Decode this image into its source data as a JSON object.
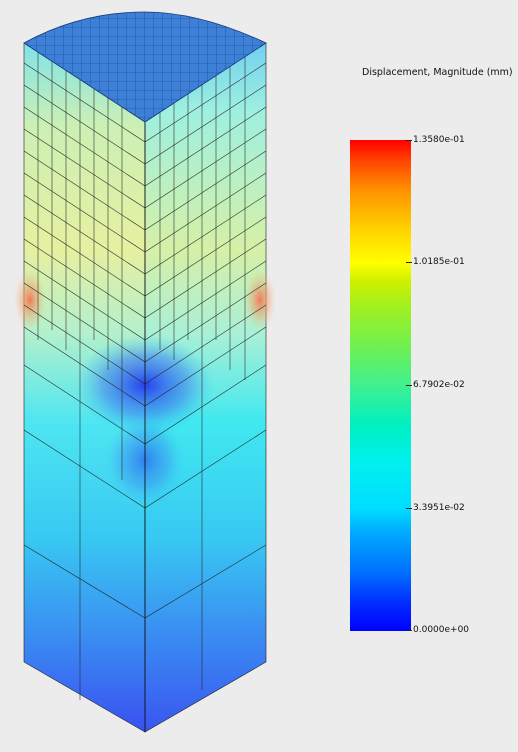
{
  "legend": {
    "title": "Displacement, Magnitude (mm)",
    "ticks": [
      "1.3580e-01",
      "1.0185e-01",
      "6.7902e-02",
      "3.3951e-02",
      "0.0000e+00"
    ],
    "tick_values": [
      0.1358,
      0.10185,
      0.067902,
      0.033951,
      0.0
    ],
    "range": [
      0.0,
      0.1358
    ],
    "colormap": [
      "#0000ff",
      "#00aaff",
      "#00f0f0",
      "#70f050",
      "#ffff00",
      "#ff9000",
      "#ff0000"
    ]
  },
  "model": {
    "description_colors": {
      "top_face": "#3a7bd5",
      "upper_left": "#e8ee9a",
      "upper_mid": "#b8f0d8",
      "hot_spot": "#f08060",
      "low_spot": "#2a40f0",
      "middle": "#40e0f0",
      "lower": "#3a8af0",
      "bottom": "#3a50f0"
    }
  }
}
